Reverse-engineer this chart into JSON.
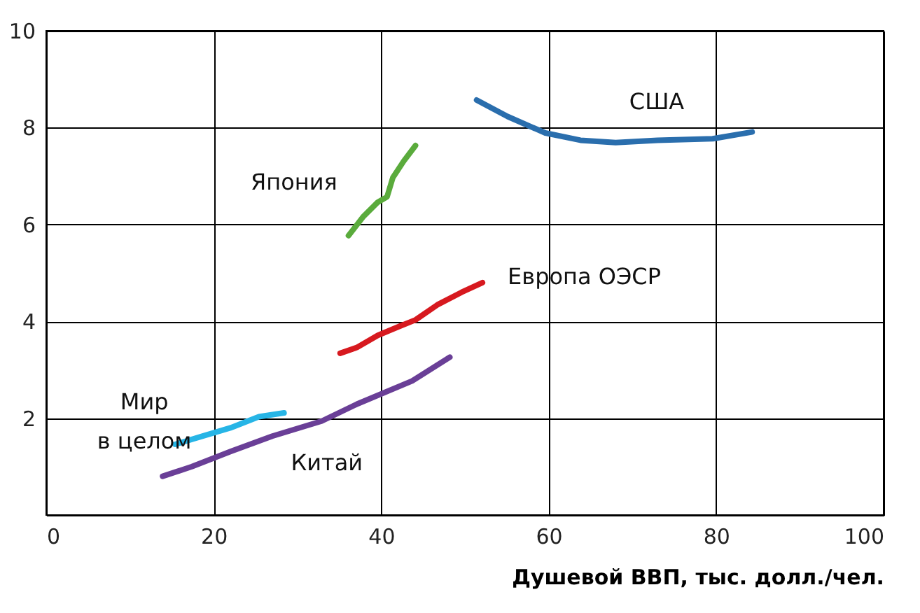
{
  "chart_data": {
    "type": "line",
    "xlabel": "Душевой ВВП, тыс. долл./чел.",
    "xlim": [
      0,
      100
    ],
    "ylim": [
      0,
      10
    ],
    "xticks": [
      0,
      20,
      40,
      60,
      80,
      100
    ],
    "yticks": [
      {
        "value": 0,
        "label": null
      },
      2,
      4,
      6,
      8,
      10
    ],
    "grid": true,
    "marker": "none",
    "line_style": "solid",
    "series": [
      {
        "name": "США",
        "color": "#2a6ead",
        "x": [
          51.4,
          55.1,
          59.6,
          63.8,
          68,
          73,
          79.6,
          84.3
        ],
        "values": [
          8.57,
          8.23,
          7.89,
          7.74,
          7.69,
          7.74,
          7.77,
          7.91
        ]
      },
      {
        "name": "Япония",
        "color": "#5aab3c",
        "x": [
          36.1,
          37.9,
          39.6,
          40.7,
          41.4,
          42.7,
          44.1
        ],
        "values": [
          5.77,
          6.17,
          6.46,
          6.57,
          6.97,
          7.31,
          7.63
        ]
      },
      {
        "name": "Европа ОЭСР",
        "color": "#d7191f",
        "x": [
          35.1,
          37.1,
          39.6,
          42.1,
          44.1,
          46.7,
          49.6,
          52.1
        ],
        "values": [
          3.34,
          3.46,
          3.71,
          3.89,
          4.03,
          4.34,
          4.6,
          4.8
        ]
      },
      {
        "name": "Мир в целом",
        "color": "#27b5e6",
        "x": [
          15.4,
          18.7,
          22,
          25.4,
          28.4
        ],
        "values": [
          1.46,
          1.63,
          1.8,
          2.03,
          2.11
        ]
      },
      {
        "name": "Китай",
        "color": "#6a3f97",
        "x": [
          13.9,
          17.4,
          22,
          27,
          32.9,
          37.1,
          43.7,
          48.2
        ],
        "values": [
          0.8,
          1.0,
          1.31,
          1.63,
          1.94,
          2.29,
          2.77,
          3.26
        ]
      }
    ]
  }
}
